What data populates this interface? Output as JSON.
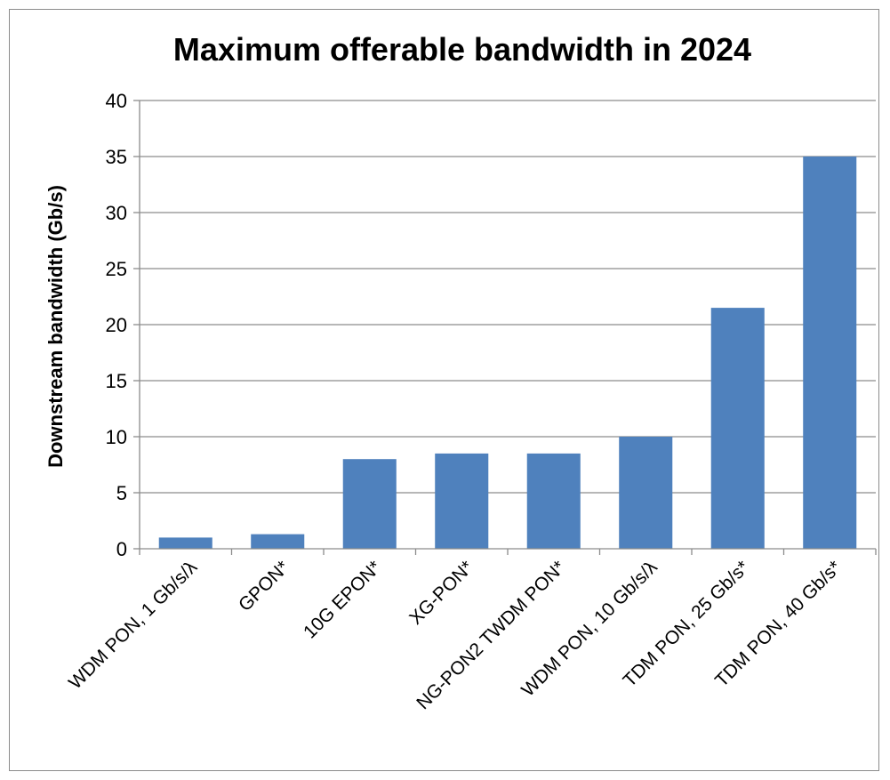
{
  "chart_data": {
    "type": "bar",
    "title": "Maximum offerable bandwidth  in 2024",
    "xlabel": "",
    "ylabel": "Downstream bandwidth (Gb/s)",
    "categories": [
      "WDM PON, 1 Gb/s/λ",
      "GPON*",
      "10G EPON*",
      "XG-PON*",
      "NG-PON2 TWDM PON*",
      "WDM PON, 10 Gb/s/λ",
      "TDM PON, 25 Gb/s*",
      "TDM PON, 40 Gb/s*"
    ],
    "values": [
      1,
      1.3,
      8,
      8.5,
      8.5,
      10,
      21.5,
      35
    ],
    "ylim": [
      0,
      40
    ],
    "yticks": [
      0,
      5,
      10,
      15,
      20,
      25,
      30,
      35,
      40
    ],
    "grid": true,
    "legend": "none",
    "bar_color": "#4f81bd",
    "grid_color": "#8c8c8c"
  }
}
